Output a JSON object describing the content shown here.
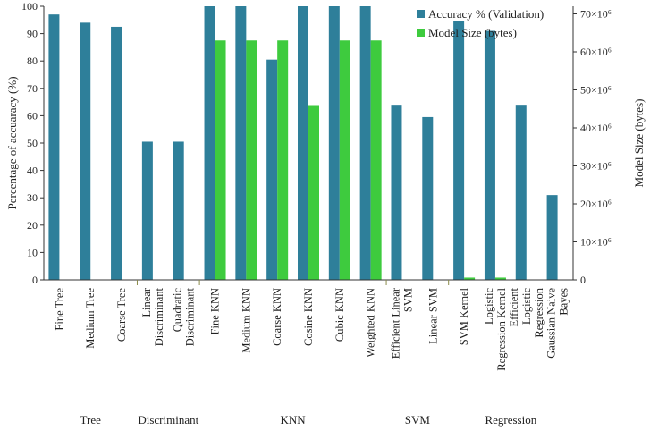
{
  "chart_data": {
    "type": "bar",
    "categories": [
      "Fine Tree",
      "Medium Tree",
      "Coarse Tree",
      "Linear Discriminant",
      "Quadratic Discriminant",
      "Fine KNN",
      "Medium KNN",
      "Coarse KNN",
      "Cosine KNN",
      "Cubic KNN",
      "Weighted KNN",
      "Efficient Linear SVM",
      "Linear SVM",
      "SVM Kernel",
      "Logistic Regression Kernel",
      "Efficient Logistic Regression",
      "Gaussian Naive Bayes"
    ],
    "groups": [
      {
        "label": "Tree",
        "categories": [
          "Fine Tree",
          "Medium Tree",
          "Coarse Tree"
        ]
      },
      {
        "label": "Discriminant",
        "categories": [
          "Linear Discriminant",
          "Quadratic Discriminant"
        ]
      },
      {
        "label": "KNN",
        "categories": [
          "Fine KNN",
          "Medium KNN",
          "Coarse KNN",
          "Cosine KNN",
          "Cubic KNN",
          "Weighted KNN"
        ]
      },
      {
        "label": "SVM",
        "categories": [
          "Efficient Linear SVM",
          "Linear SVM"
        ]
      },
      {
        "label": "Regression",
        "categories": [
          "SVM Kernel",
          "Logistic Regression Kernel",
          "Efficient Logistic Regression",
          "Gaussian Naive Bayes"
        ]
      }
    ],
    "series": [
      {
        "name": "Accuracy % (Validation)",
        "axis": "left",
        "color": "#2e7f9a",
        "values": [
          97,
          94,
          92.5,
          50.5,
          50.5,
          100,
          100,
          80.5,
          100,
          100,
          100,
          64,
          59.5,
          94.5,
          91,
          64,
          31
        ]
      },
      {
        "name": "Model Size (bytes)",
        "axis": "right",
        "color": "#3ecb3e",
        "values": [
          0,
          0,
          0,
          0,
          0,
          63000000,
          63000000,
          63000000,
          46000000,
          63000000,
          63000000,
          0,
          0,
          600000,
          600000,
          0,
          0
        ]
      }
    ],
    "ylabel": "Percentage of accuaracy (%)",
    "ylabel_right": "Model Size (bytes)",
    "ylim": [
      0,
      100
    ],
    "yticks": [
      0,
      10,
      20,
      30,
      40,
      50,
      60,
      70,
      80,
      90,
      100
    ],
    "ylim_right": [
      0,
      72000000
    ],
    "yticks_right": [
      {
        "value": 0,
        "label": "0"
      },
      {
        "value": 10000000,
        "label": "10×10⁶"
      },
      {
        "value": 20000000,
        "label": "20×10⁶"
      },
      {
        "value": 30000000,
        "label": "30×10⁶"
      },
      {
        "value": 40000000,
        "label": "40×10⁶"
      },
      {
        "value": 50000000,
        "label": "50×10⁶"
      },
      {
        "value": 60000000,
        "label": "60×10⁶"
      },
      {
        "value": 70000000,
        "label": "70×10⁶"
      }
    ],
    "legend_position": "top-right",
    "grid": false
  }
}
